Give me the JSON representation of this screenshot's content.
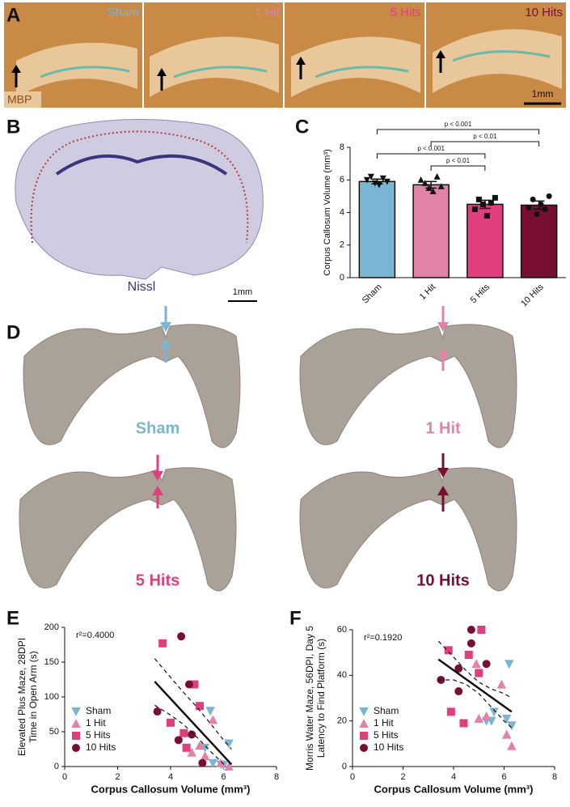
{
  "panels": {
    "A": {
      "label": "A",
      "titles": [
        "Sham",
        "1 Hit",
        "5 Hits",
        "10 Hits"
      ],
      "stain": "MBP",
      "scale": "1mm"
    },
    "B": {
      "label": "B",
      "stain": "Nissl",
      "scale": "1mm"
    },
    "C": {
      "label": "C"
    },
    "D": {
      "label": "D",
      "titles": [
        "Sham",
        "1 Hit",
        "5 Hits",
        "10 Hits"
      ]
    },
    "E": {
      "label": "E"
    },
    "F": {
      "label": "F"
    }
  },
  "chart_data": [
    {
      "type": "bar",
      "ylabel": "Corpus Callosum Volume (mm³)",
      "categories": [
        "Sham",
        "1 Hit",
        "5 Hits",
        "10 Hits"
      ],
      "values": [
        5.9,
        5.7,
        4.5,
        4.45
      ],
      "errors": [
        0.15,
        0.2,
        0.25,
        0.25
      ],
      "colors": [
        "#7ab6d3",
        "#e382a8",
        "#df3f7c",
        "#780f30"
      ],
      "markers": [
        "triangle-down",
        "triangle-up",
        "square",
        "circle"
      ],
      "points": [
        [
          6.0,
          6.2,
          5.8,
          5.7,
          6.1,
          5.9
        ],
        [
          6.0,
          5.8,
          5.5,
          5.3,
          6.2,
          5.6
        ],
        [
          4.2,
          4.8,
          4.5,
          3.8,
          4.6,
          4.9
        ],
        [
          4.3,
          4.8,
          3.9,
          4.5,
          4.2,
          5.0
        ]
      ],
      "ylim": [
        0,
        8
      ],
      "yticks": [
        0,
        2,
        4,
        6,
        8
      ],
      "annotations": [
        "p < 0.001",
        "p < 0.01",
        "p < 0.001",
        "p < 0.01"
      ]
    },
    {
      "type": "scatter",
      "annotation": "r²=0.4000",
      "xlabel": "Corpus Callosum Volume (mm³)",
      "ylabel": [
        "Elevated Plus Maze, 28DPI",
        "Time in Open Arm (s)"
      ],
      "xlim": [
        0,
        8
      ],
      "xticks": [
        0,
        2,
        4,
        6,
        8
      ],
      "ylim": [
        0,
        200
      ],
      "yticks": [
        0,
        50,
        100,
        150,
        200
      ],
      "legend": "lower left",
      "series": [
        {
          "name": "Sham",
          "color": "#7ab6d3",
          "marker": "triangle-down",
          "x": [
            5.5,
            5.3,
            6.2,
            6.0,
            5.6,
            5.9
          ],
          "values": [
            80,
            27,
            33,
            2,
            5,
            3
          ]
        },
        {
          "name": "1 Hit",
          "color": "#e382a8",
          "marker": "triangle-up",
          "x": [
            5.6,
            5.1,
            5.9,
            6.2,
            5.3,
            4.8
          ],
          "values": [
            67,
            30,
            5,
            0,
            15,
            20
          ]
        },
        {
          "name": "5 Hits",
          "color": "#df3f7c",
          "marker": "square",
          "x": [
            3.7,
            4.0,
            4.6,
            4.9,
            5.1,
            4.5
          ],
          "values": [
            177,
            63,
            27,
            118,
            87,
            48
          ]
        },
        {
          "name": "10 Hits",
          "color": "#780f30",
          "marker": "circle",
          "x": [
            4.4,
            3.5,
            4.3,
            4.8,
            4.7,
            5.2
          ],
          "values": [
            187,
            79,
            38,
            46,
            118,
            5
          ]
        }
      ],
      "fit": {
        "x": [
          3.4,
          6.3
        ],
        "values": [
          122,
          3
        ]
      },
      "ci_upper": {
        "x": [
          3.4,
          4.0,
          4.5,
          5.0,
          5.5,
          6.0,
          6.3
        ],
        "values": [
          155,
          128,
          106,
          85,
          62,
          38,
          25
        ]
      },
      "ci_lower": {
        "x": [
          3.4,
          4.0,
          4.5,
          5.0,
          5.5,
          6.1
        ],
        "values": [
          88,
          74,
          60,
          42,
          22,
          0
        ]
      }
    },
    {
      "type": "scatter",
      "annotation": "r²=0.1920",
      "xlabel": "Corpus Callosum Volume (mm³)",
      "ylabel": [
        "Morris Water Maze, 56DPI, Day 5",
        "Latency to Find Platform (s)"
      ],
      "xlim": [
        0,
        8
      ],
      "xticks": [
        0,
        2,
        4,
        6,
        8
      ],
      "ylim": [
        0,
        60
      ],
      "yticks": [
        0,
        20,
        40,
        60
      ],
      "legend": "lower left",
      "series": [
        {
          "name": "Sham",
          "color": "#7ab6d3",
          "marker": "triangle-down",
          "x": [
            6.2,
            6.3,
            5.6,
            5.5,
            6.1,
            5.3
          ],
          "values": [
            45,
            18,
            24,
            20,
            21,
            20
          ]
        },
        {
          "name": "1 Hit",
          "color": "#e382a8",
          "marker": "triangle-up",
          "x": [
            6.3,
            5.9,
            5.0,
            5.3,
            6.1,
            4.9
          ],
          "values": [
            9,
            36,
            21,
            22,
            14,
            45
          ]
        },
        {
          "name": "5 Hits",
          "color": "#df3f7c",
          "marker": "square",
          "x": [
            3.9,
            3.8,
            4.6,
            5.1,
            5.0,
            4.4
          ],
          "values": [
            24,
            51,
            49,
            60,
            41,
            19
          ]
        },
        {
          "name": "10 Hits",
          "color": "#780f30",
          "marker": "circle",
          "x": [
            3.5,
            4.7,
            4.7,
            4.2,
            4.2,
            5.3
          ],
          "values": [
            38,
            60,
            54,
            33,
            43,
            45
          ]
        }
      ],
      "fit": {
        "x": [
          3.4,
          6.3
        ],
        "values": [
          47,
          24
        ]
      },
      "ci_upper": {
        "x": [
          3.4,
          4.0,
          4.5,
          5.0,
          5.5,
          6.0,
          6.3
        ],
        "values": [
          55,
          48,
          42,
          37,
          34,
          32,
          30
        ]
      },
      "ci_lower": {
        "x": [
          3.4,
          4.0,
          4.5,
          5.0,
          5.5,
          6.0,
          6.3
        ],
        "values": [
          38,
          38,
          36,
          32,
          26,
          20,
          17
        ]
      }
    }
  ]
}
